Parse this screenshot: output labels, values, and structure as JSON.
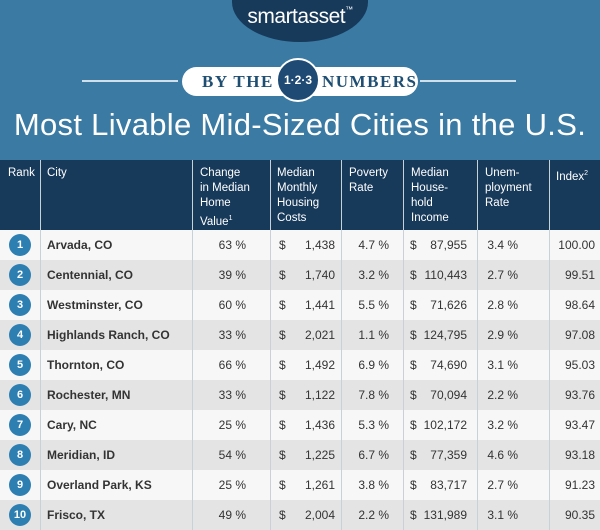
{
  "brand": {
    "name": "smartasset",
    "tm": "™"
  },
  "banner": {
    "by_the": "BY THE",
    "numbers": "NUMBERS",
    "badge": "1·2·3",
    "title": "Most Livable Mid-Sized Cities in the U.S."
  },
  "headers": {
    "rank": "Rank",
    "city": "City",
    "change": [
      "Change",
      "in Median",
      "Home",
      "Value"
    ],
    "change_sup": "1",
    "housing": [
      "Median",
      "Monthly",
      "Housing",
      "Costs"
    ],
    "poverty": [
      "Poverty",
      "Rate"
    ],
    "income": [
      "Median",
      "House-",
      "hold",
      "Income"
    ],
    "unemp": [
      "Unem-",
      "ployment",
      "Rate"
    ],
    "index": "Index",
    "index_sup": "2"
  },
  "currency": "$",
  "rows": [
    {
      "rank": "1",
      "city": "Arvada, CO",
      "change": "63 %",
      "housing": "1,438",
      "poverty": "4.7 %",
      "income": "87,955",
      "unemp": "3.4 %",
      "index": "100.00"
    },
    {
      "rank": "2",
      "city": "Centennial, CO",
      "change": "39 %",
      "housing": "1,740",
      "poverty": "3.2 %",
      "income": "110,443",
      "unemp": "2.7 %",
      "index": "99.51"
    },
    {
      "rank": "3",
      "city": "Westminster, CO",
      "change": "60 %",
      "housing": "1,441",
      "poverty": "5.5 %",
      "income": "71,626",
      "unemp": "2.8 %",
      "index": "98.64"
    },
    {
      "rank": "4",
      "city": "Highlands Ranch, CO",
      "change": "33 %",
      "housing": "2,021",
      "poverty": "1.1 %",
      "income": "124,795",
      "unemp": "2.9 %",
      "index": "97.08"
    },
    {
      "rank": "5",
      "city": "Thornton, CO",
      "change": "66 %",
      "housing": "1,492",
      "poverty": "6.9 %",
      "income": "74,690",
      "unemp": "3.1 %",
      "index": "95.03"
    },
    {
      "rank": "6",
      "city": "Rochester, MN",
      "change": "33 %",
      "housing": "1,122",
      "poverty": "7.8 %",
      "income": "70,094",
      "unemp": "2.2 %",
      "index": "93.76"
    },
    {
      "rank": "7",
      "city": "Cary, NC",
      "change": "25 %",
      "housing": "1,436",
      "poverty": "5.3 %",
      "income": "102,172",
      "unemp": "3.2 %",
      "index": "93.47"
    },
    {
      "rank": "8",
      "city": "Meridian, ID",
      "change": "54 %",
      "housing": "1,225",
      "poverty": "6.7 %",
      "income": "77,359",
      "unemp": "4.6 %",
      "index": "93.18"
    },
    {
      "rank": "9",
      "city": "Overland Park, KS",
      "change": "25 %",
      "housing": "1,261",
      "poverty": "3.8 %",
      "income": "83,717",
      "unemp": "2.7 %",
      "index": "91.23"
    },
    {
      "rank": "10",
      "city": "Frisco, TX",
      "change": "49 %",
      "housing": "2,004",
      "poverty": "2.2 %",
      "income": "131,989",
      "unemp": "3.1 %",
      "index": "90.35"
    }
  ]
}
